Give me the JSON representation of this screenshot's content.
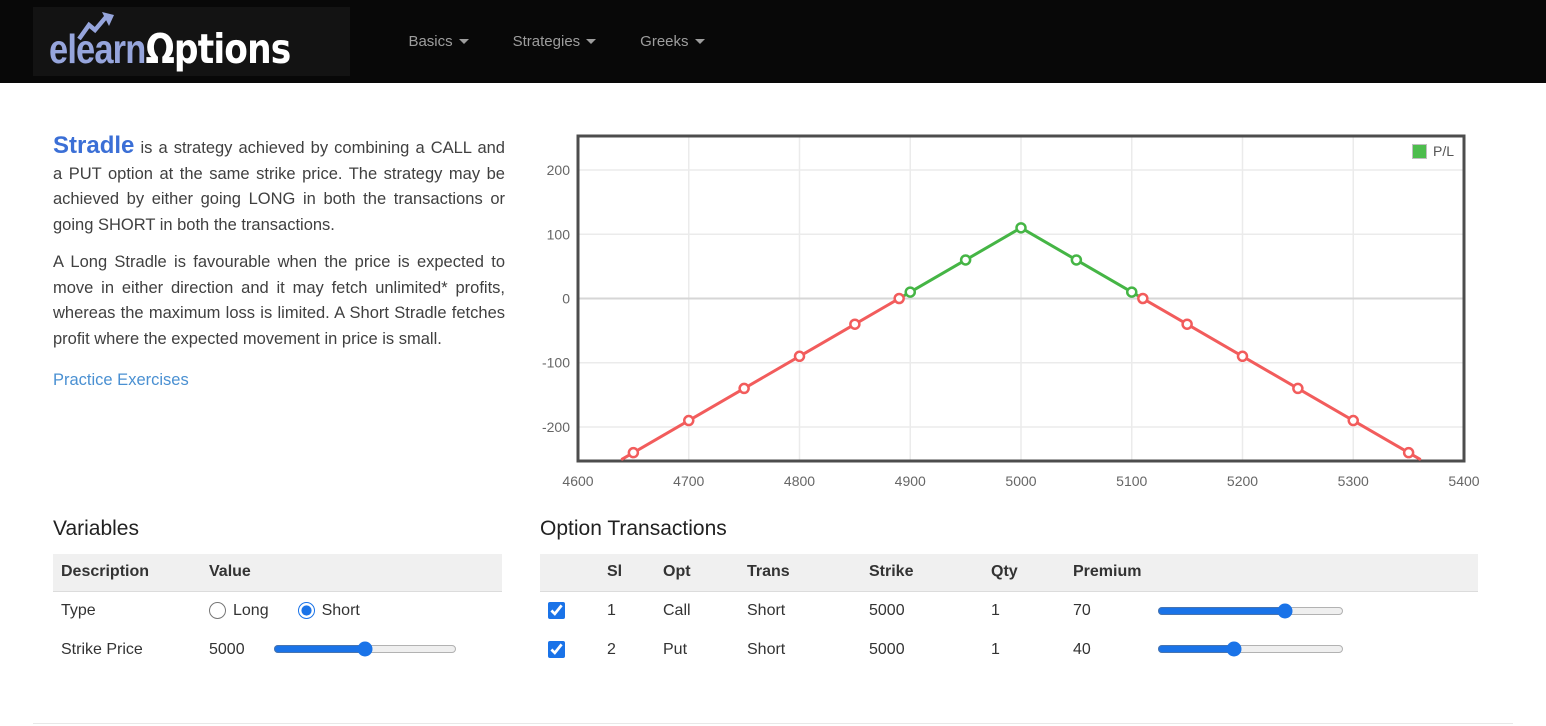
{
  "navbar": {
    "logo_part1": "elearn",
    "logo_part2": "Ωptions",
    "items": [
      {
        "label": "Basics"
      },
      {
        "label": "Strategies"
      },
      {
        "label": "Greeks"
      }
    ]
  },
  "intro": {
    "title": "Stradle",
    "text1": " is a strategy achieved by combining a CALL and a PUT option at the same strike price. The strategy may be achieved by either going LONG in both the transactions or going SHORT in both the transactions.",
    "text2": "A Long Stradle is favourable when the price is expected to move in either direction and it may fetch unlimited* profits, whereas the maximum loss is limited. A Short Stradle fetches profit where the expected movement in price is small.",
    "link": "Practice Exercises"
  },
  "variables": {
    "heading": "Variables",
    "col_description": "Description",
    "col_value": "Value",
    "type": {
      "label": "Type",
      "long_label": "Long",
      "short_label": "Short",
      "selected": "Short",
      "short_checked_attr": "checked"
    },
    "strike": {
      "label": "Strike Price",
      "value": "5000",
      "slider": {
        "min": "4500",
        "max": "5500",
        "value": "5000"
      }
    }
  },
  "transactions": {
    "heading": "Option Transactions",
    "columns": {
      "sl": "Sl",
      "opt": "Opt",
      "trans": "Trans",
      "strike": "Strike",
      "qty": "Qty",
      "premium": "Premium"
    },
    "rows": [
      {
        "checked_attr": "checked",
        "sl": "1",
        "opt": "Call",
        "trans": "Short",
        "strike": "5000",
        "qty": "1",
        "premium": "70",
        "slider": {
          "min": "0",
          "max": "100",
          "value": "70"
        }
      },
      {
        "checked_attr": "checked",
        "sl": "2",
        "opt": "Put",
        "trans": "Short",
        "strike": "5000",
        "qty": "1",
        "premium": "40",
        "slider": {
          "min": "0",
          "max": "100",
          "value": "40"
        }
      }
    ]
  },
  "chart_data": {
    "type": "line",
    "title": "",
    "xlabel": "",
    "ylabel": "",
    "series": [
      {
        "name": "P/L",
        "x": [
          4640,
          4650,
          4700,
          4750,
          4800,
          4850,
          4890,
          4900,
          4950,
          5000,
          5050,
          5100,
          5110,
          5150,
          5200,
          5250,
          5300,
          5350,
          5360
        ],
        "y": [
          -250,
          -240,
          -190,
          -140,
          -90,
          -40,
          0,
          10,
          60,
          110,
          60,
          10,
          0,
          -40,
          -90,
          -140,
          -190,
          -240,
          -250
        ]
      }
    ],
    "xticks": [
      4600,
      4700,
      4800,
      4900,
      5000,
      5100,
      5200,
      5300,
      5400
    ],
    "yticks": [
      -200,
      -100,
      0,
      100,
      200
    ],
    "xlim": [
      4600,
      5400
    ],
    "ylim": [
      -253,
      253
    ],
    "grid": true,
    "legend": {
      "label": "P/L",
      "color": "#4dbd4d",
      "position": "top-right"
    },
    "profit_color": "#45b545",
    "loss_color": "#f25c5c",
    "breakevens": [
      4890,
      5110
    ],
    "max_profit": 110,
    "strike": 5000
  }
}
